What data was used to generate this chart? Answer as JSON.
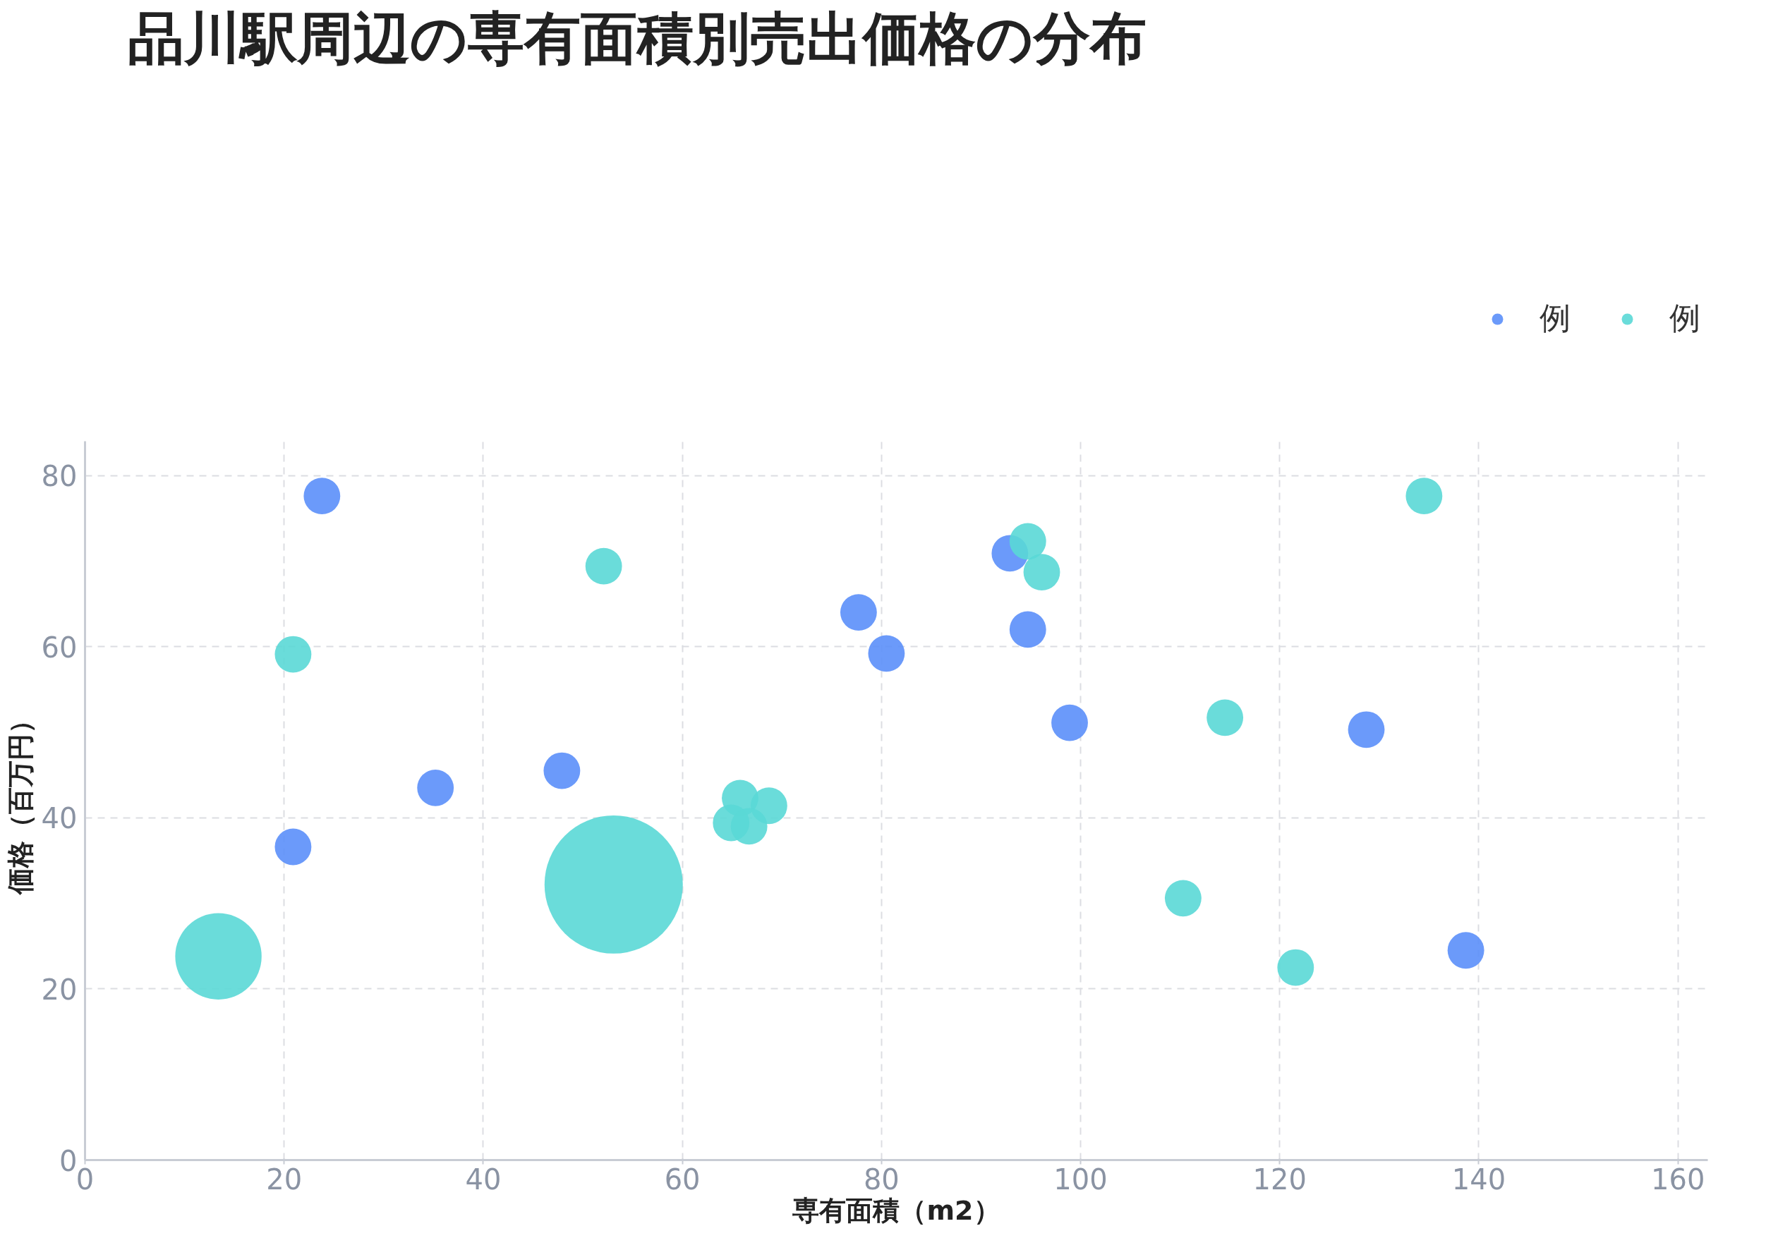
{
  "chart_data": {
    "type": "bubble",
    "title": "品川駅周辺の専有面積別売出価格の分布",
    "xlabel": "専有面積（m2）",
    "ylabel": "価格（百万円）",
    "xlim": [
      0,
      163
    ],
    "xticks": [
      0,
      20,
      40,
      60,
      80,
      100,
      120,
      140,
      160
    ],
    "ylim": [
      0,
      84
    ],
    "yticks": [
      0,
      20,
      40,
      60,
      80
    ],
    "grid": true,
    "legend": "top right",
    "series": [
      {
        "name": "例",
        "color": "#5b8ff9",
        "x": [
          23.8,
          20.9,
          35.2,
          47.9,
          77.7,
          80.5,
          92.9,
          94.7,
          98.9,
          128.7,
          138.7
        ],
        "values": [
          77.6,
          36.6,
          43.5,
          45.5,
          64.0,
          59.2,
          70.9,
          62.0,
          51.1,
          50.3,
          24.5
        ],
        "sizes": [
          0.07,
          0.07,
          0.07,
          0.07,
          0.07,
          0.07,
          0.07,
          0.07,
          0.07,
          0.07,
          0.07
        ]
      },
      {
        "name": "例",
        "color": "#5ad8d6",
        "x": [
          13.4,
          53.1,
          20.9,
          52.1,
          65.8,
          68.7,
          64.9,
          66.7,
          94.7,
          96.1,
          114.5,
          110.3,
          121.6,
          134.5
        ],
        "values": [
          23.8,
          32.2,
          59.1,
          69.4,
          42.3,
          41.4,
          39.4,
          39.0,
          72.3,
          68.7,
          51.7,
          30.6,
          22.5,
          77.6
        ],
        "sizes": [
          0.39,
          1,
          0.07,
          0.07,
          0.07,
          0.07,
          0.07,
          0.07,
          0.07,
          0.07,
          0.07,
          0.07,
          0.07,
          0.07
        ]
      }
    ]
  }
}
